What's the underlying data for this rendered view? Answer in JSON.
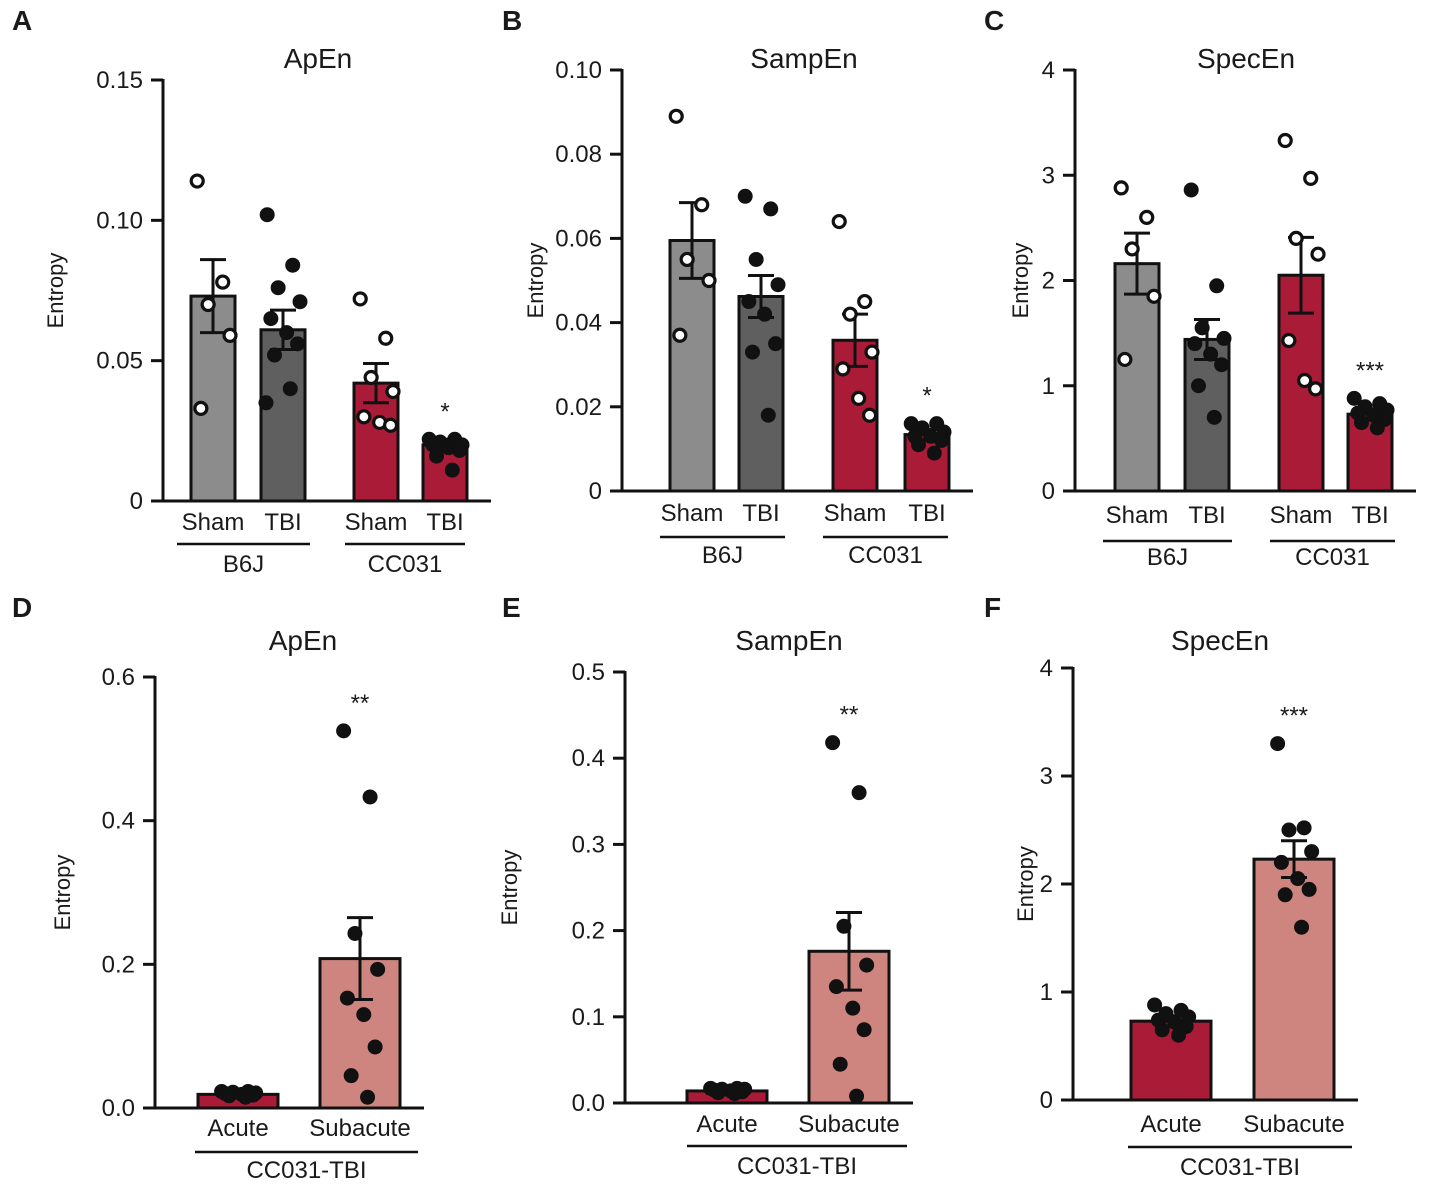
{
  "figure": {
    "background": "#ffffff"
  },
  "colors": {
    "sham_b6j": "#8c8c8c",
    "tbi_b6j": "#5f5f5f",
    "cc031": "#a91b37",
    "subacute": "#cf857f",
    "line": "#111111"
  },
  "chart_data": [
    {
      "panel": "A",
      "type": "bar",
      "title": "ApEn",
      "ylabel": "Entropy",
      "ylim": [
        0,
        0.15
      ],
      "yticks": [
        "0",
        "0.05",
        "0.10",
        "0.15"
      ],
      "yticks_values": [
        0,
        0.05,
        0.1,
        0.15
      ],
      "categories": [
        "Sham",
        "TBI",
        "Sham",
        "TBI"
      ],
      "groups": [
        {
          "label": "B6J",
          "from": 0,
          "to": 1
        },
        {
          "label": "CC031",
          "from": 2,
          "to": 3
        }
      ],
      "values": [
        0.073,
        0.061,
        0.042,
        0.02
      ],
      "sem": [
        0.013,
        0.007,
        0.007,
        0.002
      ],
      "colors": [
        "#8c8c8c",
        "#5f5f5f",
        "#a91b37",
        "#a91b37"
      ],
      "points": [
        [
          0.114,
          0.078,
          0.07,
          0.059,
          0.033
        ],
        [
          0.102,
          0.084,
          0.076,
          0.071,
          0.065,
          0.06,
          0.056,
          0.052,
          0.04,
          0.035
        ],
        [
          0.072,
          0.058,
          0.044,
          0.039,
          0.03,
          0.028,
          0.027
        ],
        [
          0.022,
          0.022,
          0.021,
          0.02,
          0.02,
          0.019,
          0.018,
          0.016,
          0.011
        ]
      ],
      "hollow": [
        true,
        false,
        true,
        false
      ],
      "significance": [
        "",
        "",
        "",
        "*"
      ]
    },
    {
      "panel": "B",
      "type": "bar",
      "title": "SampEn",
      "ylabel": "Entropy",
      "ylim": [
        0,
        0.1
      ],
      "yticks": [
        "0",
        "0.02",
        "0.04",
        "0.06",
        "0.08",
        "0.10"
      ],
      "yticks_values": [
        0,
        0.02,
        0.04,
        0.06,
        0.08,
        0.1
      ],
      "categories": [
        "Sham",
        "TBI",
        "Sham",
        "TBI"
      ],
      "groups": [
        {
          "label": "B6J",
          "from": 0,
          "to": 1
        },
        {
          "label": "CC031",
          "from": 2,
          "to": 3
        }
      ],
      "values": [
        0.0595,
        0.0462,
        0.0358,
        0.0134
      ],
      "sem": [
        0.009,
        0.005,
        0.0062,
        0.0012
      ],
      "colors": [
        "#8c8c8c",
        "#5f5f5f",
        "#a91b37",
        "#a91b37"
      ],
      "points": [
        [
          0.089,
          0.068,
          0.055,
          0.05,
          0.037
        ],
        [
          0.07,
          0.067,
          0.055,
          0.049,
          0.045,
          0.042,
          0.035,
          0.033,
          0.018
        ],
        [
          0.064,
          0.045,
          0.042,
          0.033,
          0.029,
          0.022,
          0.018
        ],
        [
          0.016,
          0.016,
          0.015,
          0.014,
          0.013,
          0.013,
          0.012,
          0.011,
          0.009
        ]
      ],
      "hollow": [
        true,
        false,
        true,
        false
      ],
      "significance": [
        "",
        "",
        "",
        "*"
      ]
    },
    {
      "panel": "C",
      "type": "bar",
      "title": "SpecEn",
      "ylabel": "Entropy",
      "ylim": [
        0,
        4
      ],
      "yticks": [
        "0",
        "1",
        "2",
        "3",
        "4"
      ],
      "yticks_values": [
        0,
        1,
        2,
        3,
        4
      ],
      "categories": [
        "Sham",
        "TBI",
        "Sham",
        "TBI"
      ],
      "groups": [
        {
          "label": "B6J",
          "from": 0,
          "to": 1
        },
        {
          "label": "CC031",
          "from": 2,
          "to": 3
        }
      ],
      "values": [
        2.16,
        1.44,
        2.05,
        0.73
      ],
      "sem": [
        0.29,
        0.19,
        0.36,
        0.05
      ],
      "colors": [
        "#8c8c8c",
        "#5f5f5f",
        "#a91b37",
        "#a91b37"
      ],
      "points": [
        [
          2.88,
          2.6,
          2.3,
          1.85,
          1.25
        ],
        [
          2.86,
          1.95,
          1.55,
          1.45,
          1.4,
          1.3,
          1.2,
          1.0,
          0.7
        ],
        [
          3.33,
          2.97,
          2.4,
          2.25,
          1.43,
          1.05,
          0.97
        ],
        [
          0.88,
          0.83,
          0.8,
          0.77,
          0.74,
          0.72,
          0.68,
          0.65,
          0.6
        ]
      ],
      "hollow": [
        true,
        false,
        true,
        false
      ],
      "significance": [
        "",
        "",
        "",
        "***"
      ]
    },
    {
      "panel": "D",
      "type": "bar",
      "title": "ApEn",
      "ylabel": "Entropy",
      "ylim": [
        0,
        0.6
      ],
      "yticks": [
        "0.0",
        "0.2",
        "0.4",
        "0.6"
      ],
      "yticks_values": [
        0,
        0.2,
        0.4,
        0.6
      ],
      "categories": [
        "Acute",
        "Subacute"
      ],
      "groups": [
        {
          "label": "CC031-TBI",
          "from": 0,
          "to": 1
        }
      ],
      "values": [
        0.019,
        0.208
      ],
      "sem": [
        0.002,
        0.057
      ],
      "colors": [
        "#a91b37",
        "#cf857f"
      ],
      "points": [
        [
          0.023,
          0.023,
          0.022,
          0.021,
          0.02,
          0.019,
          0.018,
          0.017,
          0.015
        ],
        [
          0.525,
          0.433,
          0.243,
          0.193,
          0.153,
          0.13,
          0.085,
          0.045,
          0.015
        ]
      ],
      "hollow": [
        false,
        false
      ],
      "significance": [
        "",
        "**"
      ]
    },
    {
      "panel": "E",
      "type": "bar",
      "title": "SampEn",
      "ylabel": "Entropy",
      "ylim": [
        0,
        0.5
      ],
      "yticks": [
        "0.0",
        "0.1",
        "0.2",
        "0.3",
        "0.4",
        "0.5"
      ],
      "yticks_values": [
        0,
        0.1,
        0.2,
        0.3,
        0.4,
        0.5
      ],
      "categories": [
        "Acute",
        "Subacute"
      ],
      "groups": [
        {
          "label": "CC031-TBI",
          "from": 0,
          "to": 1
        }
      ],
      "values": [
        0.014,
        0.176
      ],
      "sem": [
        0.002,
        0.045
      ],
      "colors": [
        "#a91b37",
        "#cf857f"
      ],
      "points": [
        [
          0.017,
          0.017,
          0.016,
          0.016,
          0.015,
          0.014,
          0.013,
          0.012,
          0.011
        ],
        [
          0.418,
          0.36,
          0.205,
          0.16,
          0.135,
          0.11,
          0.085,
          0.045,
          0.008
        ]
      ],
      "hollow": [
        false,
        false
      ],
      "significance": [
        "",
        "**"
      ]
    },
    {
      "panel": "F",
      "type": "bar",
      "title": "SpecEn",
      "ylabel": "Entropy",
      "ylim": [
        0,
        4
      ],
      "yticks": [
        "0",
        "1",
        "2",
        "3",
        "4"
      ],
      "yticks_values": [
        0,
        1,
        2,
        3,
        4
      ],
      "categories": [
        "Acute",
        "Subacute"
      ],
      "groups": [
        {
          "label": "CC031-TBI",
          "from": 0,
          "to": 1
        }
      ],
      "values": [
        0.73,
        2.23
      ],
      "sem": [
        0.05,
        0.17
      ],
      "colors": [
        "#a91b37",
        "#cf857f"
      ],
      "points": [
        [
          0.88,
          0.83,
          0.8,
          0.77,
          0.74,
          0.72,
          0.68,
          0.65,
          0.6
        ],
        [
          3.3,
          2.52,
          2.5,
          2.3,
          2.2,
          2.05,
          1.95,
          1.9,
          1.6
        ]
      ],
      "hollow": [
        false,
        false
      ],
      "significance": [
        "",
        "***"
      ]
    }
  ]
}
